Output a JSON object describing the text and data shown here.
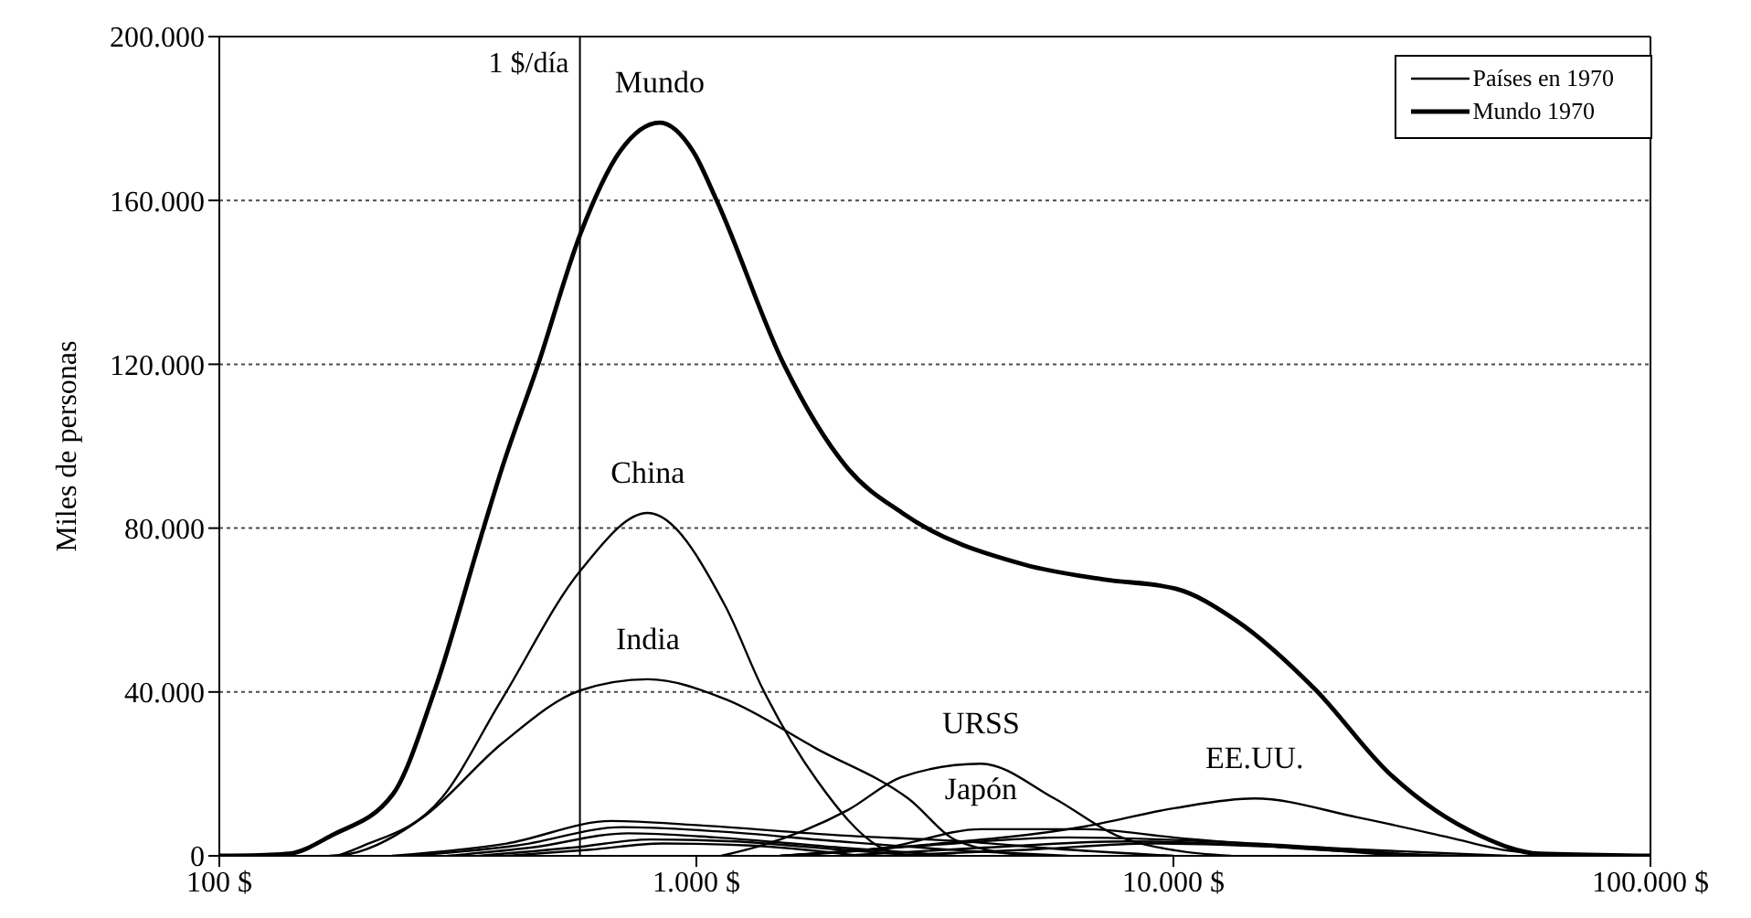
{
  "chart_data": {
    "type": "line",
    "ylabel": "Miles de personas",
    "log": "x",
    "xlim": [
      100,
      100000
    ],
    "xticks": [
      {
        "value": 100,
        "label": "100 $"
      },
      {
        "value": 1000,
        "label": "1.000 $"
      },
      {
        "value": 10000,
        "label": "10.000 $"
      },
      {
        "value": 100000,
        "label": "100.000 $"
      }
    ],
    "ylim": [
      0,
      200000
    ],
    "yticks": [
      {
        "value": 0,
        "label": "0"
      },
      {
        "value": 40000,
        "label": "40.000"
      },
      {
        "value": 80000,
        "label": "80.000"
      },
      {
        "value": 120000,
        "label": "120.000"
      },
      {
        "value": 160000,
        "label": "160.000"
      },
      {
        "value": 200000,
        "label": "200.000"
      }
    ],
    "grid": "y",
    "legend": "top right",
    "marker": "none",
    "line_style": "solid",
    "ref_lines": [
      {
        "axis": "x",
        "value": 570,
        "label": "1 $/día",
        "color": "#000000"
      }
    ],
    "annotations": [
      {
        "text": "Mundo",
        "x": 838,
        "y": 179000
      },
      {
        "text": "China",
        "x": 791,
        "y": 83700
      },
      {
        "text": "India",
        "x": 791,
        "y": 43100
      },
      {
        "text": "URSS",
        "x": 3950,
        "y": 22500
      },
      {
        "text": "Japón",
        "x": 3950,
        "y": 6500
      },
      {
        "text": "EE.UU.",
        "x": 14790,
        "y": 14000
      }
    ],
    "series": [
      {
        "name": "Países en 1970",
        "color": "#000000",
        "x": [
          177,
          198,
          292,
          391,
          572,
          791,
          1153,
          1374,
          1790,
          2418,
          2780
        ],
        "values": [
          0,
          2200,
          14000,
          38200,
          69700,
          83700,
          60700,
          41000,
          18400,
          2200,
          0
        ]
      },
      {
        "name": "Mundo 1970",
        "color": "#000000",
        "x": [
          100,
          125,
          140,
          172,
          231,
          282,
          358,
          391,
          466,
          572,
          692,
          838,
          984,
          1103,
          1525,
          2079,
          2700,
          4870,
          7120,
          10120,
          13480,
          19870,
          28300,
          43800,
          58500,
          100000
        ],
        "values": [
          0,
          200,
          500,
          5000,
          15000,
          40000,
          80000,
          94500,
          120000,
          152000,
          172000,
          179000,
          172000,
          160000,
          120000,
          94500,
          83700,
          71100,
          67500,
          65200,
          57600,
          40500,
          20200,
          5000,
          500,
          0
        ]
      },
      {
        "color": "#000000",
        "x": [
          170,
          188,
          268,
          391,
          572,
          791,
          1153,
          1790,
          2780,
          3530,
          5000
        ],
        "values": [
          0,
          500,
          9500,
          27400,
          40400,
          43100,
          38200,
          26100,
          14000,
          3600,
          0
        ]
      },
      {
        "color": "#000000",
        "x": [
          1127,
          1340,
          2079,
          2700,
          3950,
          5630,
          7590,
          10120,
          13200
        ],
        "values": [
          0,
          2200,
          11200,
          19300,
          22500,
          14000,
          5000,
          1300,
          0
        ]
      },
      {
        "color": "#000000",
        "x": [
          1500,
          2500,
          3950,
          6550,
          10000,
          20000,
          40000
        ],
        "values": [
          0,
          2000,
          6500,
          6500,
          4500,
          1500,
          0
        ]
      },
      {
        "color": "#000000",
        "x": [
          1500,
          2700,
          6550,
          10120,
          14790,
          24300,
          37800,
          50000,
          70000
        ],
        "values": [
          0,
          2200,
          7200,
          11700,
          14000,
          9400,
          4500,
          1300,
          0
        ]
      },
      {
        "color": "#000000",
        "x": [
          230,
          400,
          665,
          1000,
          2000,
          3530,
          6000,
          10000
        ],
        "values": [
          0,
          3000,
          8500,
          7500,
          5000,
          3600,
          1500,
          0
        ]
      },
      {
        "color": "#000000",
        "x": [
          250,
          420,
          700,
          1100,
          2000,
          4000,
          6000
        ],
        "values": [
          0,
          2500,
          7000,
          6000,
          3500,
          1000,
          0
        ]
      },
      {
        "color": "#000000",
        "x": [
          300,
          450,
          720,
          1100,
          2000,
          3500
        ],
        "values": [
          0,
          2000,
          5500,
          4500,
          2000,
          0
        ]
      },
      {
        "color": "#000000",
        "x": [
          350,
          550,
          800,
          1200,
          2000,
          3000
        ],
        "values": [
          0,
          2000,
          4000,
          3500,
          1500,
          0
        ]
      },
      {
        "color": "#000000",
        "x": [
          400,
          600,
          850,
          1300,
          2200
        ],
        "values": [
          0,
          1500,
          3000,
          2500,
          0
        ]
      },
      {
        "color": "#000000",
        "x": [
          1500,
          3000,
          6000,
          12000,
          25000,
          50000
        ],
        "values": [
          0,
          2500,
          4500,
          3500,
          1500,
          0
        ]
      },
      {
        "color": "#000000",
        "x": [
          2000,
          4000,
          8000,
          15000,
          30000
        ],
        "values": [
          0,
          2000,
          3500,
          2500,
          0
        ]
      },
      {
        "color": "#000000",
        "x": [
          2500,
          5000,
          9000,
          18000,
          35000
        ],
        "values": [
          0,
          1500,
          3000,
          2000,
          0
        ]
      }
    ]
  }
}
